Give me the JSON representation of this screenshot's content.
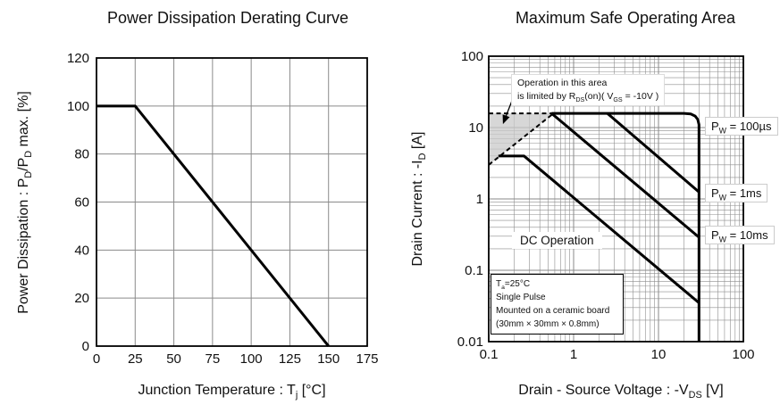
{
  "charts": {
    "derating": {
      "title": "Power Dissipation Derating Curve",
      "ylabel_parts": {
        "p0": "Power Dissipation : P",
        "s0": "D",
        "p1": "/P",
        "s1": "D",
        "p2": " max. [%]"
      },
      "xlabel_parts": {
        "p0": "Junction Temperature : T",
        "s0": "j",
        "p1": " [°C]"
      }
    },
    "soa": {
      "title": "Maximum Safe Operating Area",
      "ylabel_parts": {
        "p0": "Drain Current : -I",
        "s0": "D",
        "p1": " [A]"
      },
      "xlabel_parts": {
        "p0": "Drain - Source Voltage : -V",
        "s0": "DS",
        "p1": " [V]"
      },
      "annotation": {
        "line1": "Operation in this area",
        "line2": {
          "p0": "is limited by R",
          "s0": "DS",
          "p1": "(on)",
          "p2": "( V",
          "s1": "GS",
          "p3": " = -10V )"
        }
      },
      "curve_labels": {
        "pw100us": {
          "p0": "P",
          "s0": "W",
          "p1": " = 100µs"
        },
        "pw1ms": {
          "p0": "P",
          "s0": "W",
          "p1": " = 1ms"
        },
        "pw10ms": {
          "p0": "P",
          "s0": "W",
          "p1": " = 10ms"
        },
        "dc": "DC Operation"
      },
      "conditions": {
        "line1": {
          "p0": "T",
          "s0": "a",
          "p1": "=25°C"
        },
        "line2": "Single Pulse",
        "line3": "Mounted on a ceramic board",
        "line4": "(30mm × 30mm × 0.8mm)"
      }
    }
  },
  "chart_data": [
    {
      "type": "line",
      "title": "Power Dissipation Derating Curve",
      "xlabel": "Junction Temperature : Tj [°C]",
      "ylabel": "Power Dissipation : PD/PD max. [%]",
      "xscale": "linear",
      "yscale": "linear",
      "xlim": [
        0,
        175
      ],
      "ylim": [
        0,
        120
      ],
      "xticks": [
        0,
        25,
        50,
        75,
        100,
        125,
        150,
        175
      ],
      "yticks": [
        0,
        20,
        40,
        60,
        80,
        100,
        120
      ],
      "grid": true,
      "series": [
        {
          "name": "derating-line",
          "style": "solid",
          "points": [
            [
              0,
              100
            ],
            [
              25,
              100
            ],
            [
              150,
              0
            ]
          ]
        }
      ]
    },
    {
      "type": "line",
      "title": "Maximum Safe Operating Area",
      "xlabel": "Drain - Source Voltage : -VDS [V]",
      "ylabel": "Drain Current : -ID [A]",
      "xscale": "log",
      "yscale": "log",
      "xlim": [
        0.1,
        100
      ],
      "ylim": [
        0.01,
        100
      ],
      "xticks": [
        0.1,
        1,
        10,
        100
      ],
      "yticks": [
        0.01,
        0.1,
        1,
        10,
        100
      ],
      "grid": true,
      "minor_grid": true,
      "series": [
        {
          "name": "pw-100us",
          "label": "PW = 100µs",
          "style": "solid",
          "points": [
            [
              0.55,
              15.8
            ],
            [
              20,
              15.8
            ],
            [
              24,
              15.5
            ],
            [
              27,
              14.5
            ],
            [
              29,
              13
            ],
            [
              30,
              11
            ],
            [
              30,
              0.01
            ]
          ]
        },
        {
          "name": "pw-1ms",
          "label": "PW = 1ms",
          "style": "solid",
          "points": [
            [
              2.5,
              15.8
            ],
            [
              30,
              1.25
            ]
          ]
        },
        {
          "name": "pw-10ms",
          "label": "PW = 10ms",
          "style": "solid",
          "points": [
            [
              0.55,
              15.8
            ],
            [
              30,
              0.29
            ]
          ]
        },
        {
          "name": "dc-operation",
          "label": "DC Operation",
          "style": "solid",
          "points": [
            [
              0.13,
              4
            ],
            [
              0.26,
              4
            ],
            [
              30,
              0.035
            ]
          ]
        },
        {
          "name": "rdson-limit-flat",
          "label": "RDS(on) limit (dashed)",
          "style": "dashed",
          "points": [
            [
              0.1,
              15.8
            ],
            [
              0.58,
              15.8
            ]
          ]
        },
        {
          "name": "rdson-limit-slope",
          "label": "RDS(on) limit (dashed)",
          "style": "dashed",
          "points": [
            [
              0.1,
              3.0
            ],
            [
              0.58,
              15.8
            ]
          ]
        }
      ],
      "shaded_region": {
        "points": [
          [
            0.1,
            15.8
          ],
          [
            0.58,
            15.8
          ],
          [
            0.1,
            3.0
          ]
        ],
        "fill": "#c9c9c9",
        "opacity": 0.75
      },
      "arrow": {
        "from": [
          0.212,
          34.5
        ],
        "to": [
          0.147,
          11.2
        ]
      }
    }
  ]
}
